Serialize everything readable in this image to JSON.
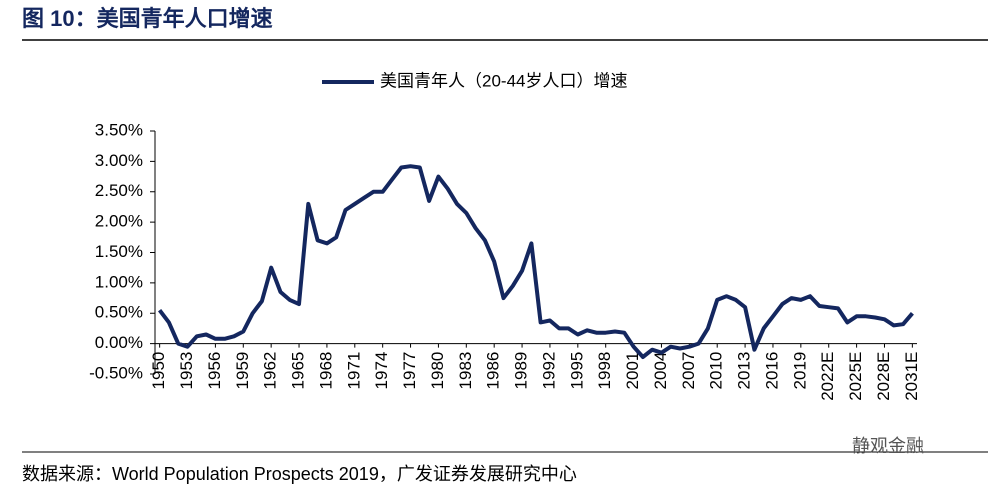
{
  "chart_data": {
    "type": "line",
    "title": "图 10：美国青年人口增速",
    "source": "数据来源：World Population Prospects 2019，广发证券发展研究中心",
    "watermark": "静观金融",
    "categories": [
      "1950",
      null,
      null,
      "1953",
      null,
      null,
      "1956",
      null,
      null,
      "1959",
      null,
      null,
      "1962",
      null,
      null,
      "1965",
      null,
      null,
      "1968",
      null,
      null,
      "1971",
      null,
      null,
      "1974",
      null,
      null,
      "1977",
      null,
      null,
      "1980",
      null,
      null,
      "1983",
      null,
      null,
      "1986",
      null,
      null,
      "1989",
      null,
      null,
      "1992",
      null,
      null,
      "1995",
      null,
      null,
      "1998",
      null,
      null,
      "2001",
      null,
      null,
      "2004",
      null,
      null,
      "2007",
      null,
      null,
      "2010",
      null,
      null,
      "2013",
      null,
      null,
      "2016",
      null,
      null,
      "2019",
      null,
      null,
      "2022E",
      null,
      null,
      "2025E",
      null,
      null,
      "2028E",
      null,
      null,
      "2031E"
    ],
    "series": [
      {
        "name": "美国青年人（20-44岁人口）增速",
        "color": "#14275f",
        "values": [
          0.55,
          0.35,
          0.0,
          -0.05,
          0.12,
          0.15,
          0.08,
          0.08,
          0.12,
          0.2,
          0.5,
          0.7,
          1.25,
          0.85,
          0.72,
          0.65,
          2.3,
          1.7,
          1.65,
          1.75,
          2.2,
          2.3,
          2.4,
          2.5,
          2.5,
          2.7,
          2.9,
          2.92,
          2.9,
          2.35,
          2.75,
          2.55,
          2.3,
          2.15,
          1.9,
          1.7,
          1.35,
          0.75,
          0.95,
          1.2,
          1.65,
          0.35,
          0.38,
          0.25,
          0.25,
          0.15,
          0.22,
          0.18,
          0.18,
          0.2,
          0.18,
          -0.05,
          -0.22,
          -0.1,
          -0.15,
          -0.05,
          -0.08,
          -0.05,
          0.0,
          0.25,
          0.72,
          0.78,
          0.72,
          0.6,
          -0.1,
          0.25,
          0.45,
          0.65,
          0.75,
          0.72,
          0.78,
          0.62,
          0.6,
          0.58,
          0.35,
          0.45,
          0.45,
          0.43,
          0.4,
          0.3,
          0.32,
          0.5
        ]
      }
    ],
    "ylim": [
      -0.5,
      3.5
    ],
    "yticks": [
      {
        "value": -0.5,
        "label": "-0.50%"
      },
      {
        "value": 0,
        "label": "0.00%"
      },
      {
        "value": 0.5,
        "label": "0.50%"
      },
      {
        "value": 1,
        "label": "1.00%"
      },
      {
        "value": 1.5,
        "label": "1.50%"
      },
      {
        "value": 2,
        "label": "2.00%"
      },
      {
        "value": 2.5,
        "label": "2.50%"
      },
      {
        "value": 3,
        "label": "3.00%"
      },
      {
        "value": 3.5,
        "label": "3.50%"
      }
    ],
    "grid": false,
    "legend": "top"
  }
}
